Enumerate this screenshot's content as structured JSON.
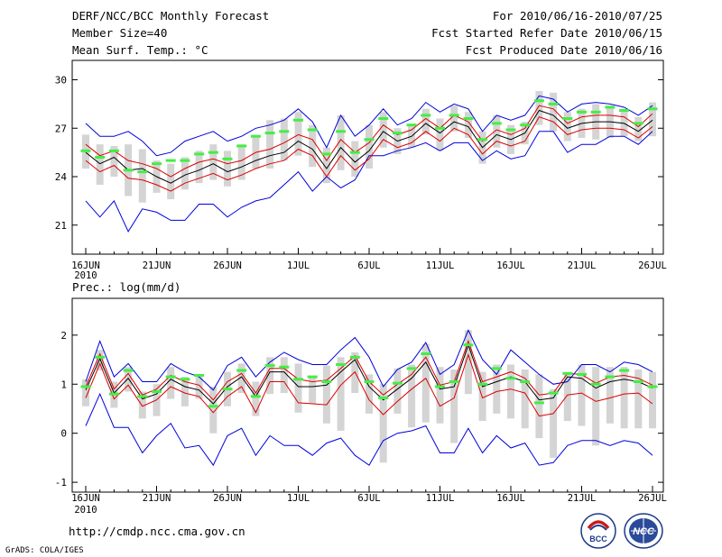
{
  "header": {
    "left": [
      "DERF/NCC/BCC Monthly Forecast",
      "Member Size=40",
      "Mean Surf. Temp.: °C"
    ],
    "right": [
      "For 2010/06/16-2010/07/25",
      "Fcst Started Refer Date 2010/06/15",
      "Fcst Produced Date 2010/06/16"
    ]
  },
  "footer": {
    "url": "http://cmdp.ncc.cma.gov.cn",
    "grads": "GrADS: COLA/IGES"
  },
  "logos": {
    "bcc_text": "BCC",
    "ncc_text": "NCC"
  },
  "colors": {
    "box": "#d4d4d4",
    "mean": "#000000",
    "std": "#dd0000",
    "range": "#0000dd",
    "obs": "#44ee44"
  },
  "chart_data": [
    {
      "type": "line",
      "title": "Mean Surf. Temp.: °C",
      "x_tick_labels": [
        "16JUN",
        "21JUN",
        "26JUN",
        "1JUL",
        "6JUL",
        "11JUL",
        "16JUL",
        "21JUL",
        "26JUL"
      ],
      "x_tick_days": [
        0,
        5,
        10,
        15,
        20,
        25,
        30,
        35,
        40
      ],
      "x_year_label": "2010",
      "ylim": [
        19.2,
        31.2
      ],
      "yticks": [
        21,
        24,
        27,
        30
      ],
      "series": [
        {
          "name": "max",
          "values": [
            27.3,
            26.5,
            26.5,
            26.8,
            26.2,
            25.3,
            25.5,
            26.2,
            26.5,
            26.8,
            26.2,
            26.5,
            27.0,
            27.2,
            27.5,
            28.2,
            27.4,
            25.8,
            27.8,
            26.5,
            27.2,
            28.2,
            27.2,
            27.6,
            28.6,
            28.0,
            28.5,
            28.2,
            26.8,
            27.8,
            27.5,
            27.8,
            29.0,
            28.8,
            28.0,
            28.5,
            28.6,
            28.5,
            28.3,
            27.8,
            28.4
          ]
        },
        {
          "name": "mean+std",
          "values": [
            26.0,
            25.3,
            25.6,
            25.0,
            24.8,
            24.5,
            24.0,
            24.5,
            24.9,
            25.1,
            24.8,
            25.0,
            25.5,
            25.7,
            26.1,
            26.6,
            26.3,
            25.0,
            26.3,
            25.5,
            26.1,
            27.2,
            26.6,
            26.9,
            27.6,
            27.0,
            27.8,
            27.4,
            26.2,
            26.9,
            26.6,
            27.0,
            28.4,
            28.2,
            27.3,
            27.7,
            27.8,
            27.8,
            27.7,
            27.1,
            27.9
          ]
        },
        {
          "name": "mean",
          "values": [
            25.5,
            24.8,
            25.2,
            24.4,
            24.5,
            24.0,
            23.6,
            24.1,
            24.4,
            24.8,
            24.3,
            24.6,
            25.0,
            25.3,
            25.5,
            26.2,
            25.7,
            24.5,
            25.8,
            24.9,
            25.6,
            26.8,
            26.2,
            26.5,
            27.3,
            26.7,
            27.4,
            27.1,
            25.8,
            26.6,
            26.3,
            26.7,
            28.1,
            27.8,
            27.0,
            27.3,
            27.4,
            27.4,
            27.3,
            26.8,
            27.5
          ]
        },
        {
          "name": "mean-std",
          "values": [
            25.0,
            24.3,
            24.7,
            23.9,
            23.8,
            23.5,
            23.1,
            23.6,
            23.9,
            24.2,
            23.8,
            24.1,
            24.5,
            24.8,
            25.0,
            25.7,
            25.3,
            24.0,
            25.3,
            24.4,
            25.1,
            26.3,
            25.8,
            26.1,
            26.8,
            26.2,
            27.0,
            26.6,
            25.4,
            26.2,
            25.9,
            26.2,
            27.7,
            27.4,
            26.6,
            26.9,
            27.0,
            27.0,
            26.9,
            26.4,
            27.1
          ]
        },
        {
          "name": "min",
          "values": [
            22.5,
            21.5,
            22.5,
            20.6,
            22.0,
            21.8,
            21.3,
            21.3,
            22.3,
            22.3,
            21.5,
            22.1,
            22.5,
            22.7,
            23.5,
            24.3,
            23.1,
            24.0,
            23.3,
            23.8,
            25.3,
            25.3,
            25.6,
            25.8,
            26.1,
            25.6,
            26.1,
            26.1,
            25.0,
            25.6,
            25.1,
            25.3,
            26.8,
            26.8,
            25.5,
            26.0,
            26.0,
            26.5,
            26.5,
            26.0,
            26.8
          ]
        },
        {
          "name": "observed",
          "values": [
            25.6,
            25.2,
            25.6,
            24.4,
            24.3,
            24.8,
            25.0,
            25.0,
            25.4,
            25.5,
            25.1,
            25.9,
            26.5,
            26.7,
            26.8,
            27.5,
            26.9,
            25.4,
            26.8,
            25.5,
            26.3,
            27.6,
            26.7,
            27.2,
            27.8,
            27.0,
            27.8,
            27.6,
            26.3,
            27.3,
            26.9,
            27.2,
            28.7,
            28.5,
            27.6,
            28.0,
            28.0,
            28.3,
            28.1,
            27.3,
            28.2
          ]
        },
        {
          "name": "box_top",
          "values": [
            26.6,
            26.0,
            25.9,
            26.0,
            25.7,
            25.0,
            24.8,
            25.2,
            25.6,
            26.0,
            25.6,
            26.0,
            26.5,
            27.5,
            27.6,
            28.0,
            27.2,
            25.8,
            27.8,
            26.2,
            27.2,
            28.0,
            27.0,
            27.2,
            28.2,
            27.6,
            28.4,
            28.0,
            26.8,
            27.8,
            27.2,
            27.4,
            29.3,
            29.2,
            28.0,
            28.2,
            28.5,
            28.4,
            28.2,
            27.7,
            28.6
          ]
        },
        {
          "name": "box_bottom",
          "values": [
            24.5,
            23.5,
            24.0,
            22.8,
            22.4,
            23.0,
            22.6,
            23.2,
            23.6,
            23.8,
            23.4,
            23.8,
            24.5,
            24.5,
            25.0,
            25.3,
            24.6,
            23.6,
            24.4,
            24.0,
            24.5,
            25.8,
            25.4,
            25.8,
            26.6,
            25.6,
            26.8,
            26.4,
            24.8,
            25.8,
            25.4,
            26.0,
            27.2,
            26.8,
            26.2,
            26.4,
            26.3,
            26.4,
            26.5,
            26.2,
            26.5
          ]
        }
      ]
    },
    {
      "type": "line",
      "title": "Prec.: log(mm/d)",
      "x_tick_labels": [
        "16JUN",
        "21JUN",
        "26JUN",
        "1JUL",
        "6JUL",
        "11JUL",
        "16JUL",
        "21JUL",
        "26JUL"
      ],
      "x_tick_days": [
        0,
        5,
        10,
        15,
        20,
        25,
        30,
        35,
        40
      ],
      "x_year_label": "2010",
      "ylim": [
        -1.2,
        2.75
      ],
      "yticks": [
        -1,
        0,
        1,
        2
      ],
      "series": [
        {
          "name": "max",
          "values": [
            1.05,
            1.88,
            1.15,
            1.42,
            1.05,
            1.05,
            1.42,
            1.25,
            1.15,
            0.88,
            1.38,
            1.55,
            1.15,
            1.45,
            1.65,
            1.5,
            1.4,
            1.4,
            1.7,
            1.95,
            1.55,
            0.95,
            1.3,
            1.45,
            1.85,
            1.2,
            1.4,
            2.1,
            1.5,
            1.2,
            1.7,
            1.45,
            1.2,
            1.0,
            1.05,
            1.4,
            1.4,
            1.25,
            1.45,
            1.4,
            1.25
          ]
        },
        {
          "name": "mean+std",
          "values": [
            0.95,
            1.62,
            0.9,
            1.22,
            0.78,
            0.9,
            1.18,
            1.05,
            0.98,
            0.68,
            1.05,
            1.22,
            0.82,
            1.32,
            1.32,
            1.1,
            1.05,
            1.08,
            1.32,
            1.58,
            1.05,
            0.78,
            1.0,
            1.2,
            1.55,
            0.98,
            1.05,
            1.88,
            1.05,
            1.15,
            1.25,
            1.12,
            0.78,
            0.82,
            1.22,
            1.2,
            1.02,
            1.15,
            1.18,
            1.12,
            0.98
          ]
        },
        {
          "name": "mean",
          "values": [
            0.88,
            1.52,
            0.82,
            1.12,
            0.7,
            0.8,
            1.1,
            0.95,
            0.88,
            0.6,
            0.95,
            1.15,
            0.75,
            1.25,
            1.25,
            0.95,
            0.95,
            0.98,
            1.25,
            1.5,
            0.95,
            0.68,
            0.9,
            1.12,
            1.45,
            0.9,
            0.95,
            1.8,
            0.95,
            1.05,
            1.15,
            1.05,
            0.68,
            0.72,
            1.15,
            1.12,
            0.92,
            1.05,
            1.1,
            1.05,
            0.92
          ]
        },
        {
          "name": "mean-std",
          "values": [
            0.72,
            1.42,
            0.7,
            0.98,
            0.55,
            0.68,
            0.95,
            0.82,
            0.75,
            0.42,
            0.75,
            0.95,
            0.42,
            1.05,
            1.05,
            0.62,
            0.6,
            0.58,
            0.98,
            1.25,
            0.68,
            0.38,
            0.65,
            0.9,
            1.12,
            0.55,
            0.72,
            1.6,
            0.72,
            0.85,
            0.9,
            0.82,
            0.35,
            0.4,
            0.78,
            0.82,
            0.65,
            0.72,
            0.8,
            0.82,
            0.6
          ]
        },
        {
          "name": "min",
          "values": [
            0.15,
            0.8,
            0.12,
            0.12,
            -0.4,
            -0.05,
            0.2,
            -0.3,
            -0.25,
            -0.65,
            -0.05,
            0.1,
            -0.45,
            -0.05,
            -0.25,
            -0.25,
            -0.45,
            -0.2,
            -0.1,
            -0.45,
            -0.65,
            -0.15,
            0.0,
            0.05,
            0.15,
            -0.4,
            -0.4,
            0.1,
            -0.4,
            -0.05,
            -0.3,
            -0.2,
            -0.65,
            -0.6,
            -0.25,
            -0.15,
            -0.15,
            -0.25,
            -0.15,
            -0.2,
            -0.45
          ]
        },
        {
          "name": "observed",
          "values": [
            0.95,
            1.55,
            0.8,
            1.28,
            0.75,
            0.85,
            1.15,
            1.1,
            1.18,
            0.55,
            0.9,
            1.28,
            0.75,
            1.38,
            1.35,
            1.1,
            1.15,
            1.05,
            1.4,
            1.55,
            1.05,
            0.72,
            1.02,
            1.32,
            1.62,
            0.95,
            1.05,
            1.8,
            1.0,
            1.32,
            1.12,
            1.05,
            0.62,
            0.82,
            1.22,
            1.2,
            1.0,
            1.15,
            1.28,
            1.05,
            0.95
          ]
        },
        {
          "name": "box_top",
          "values": [
            1.1,
            1.7,
            1.05,
            1.35,
            0.85,
            1.0,
            1.35,
            1.15,
            1.15,
            0.95,
            1.25,
            1.42,
            1.05,
            1.55,
            1.55,
            1.42,
            1.15,
            1.38,
            1.55,
            1.65,
            1.2,
            1.0,
            1.32,
            1.4,
            1.82,
            1.35,
            1.3,
            2.1,
            1.25,
            1.4,
            1.4,
            1.3,
            1.2,
            0.9,
            1.2,
            1.4,
            1.35,
            1.35,
            1.35,
            1.3,
            1.25
          ]
        },
        {
          "name": "box_bottom",
          "values": [
            0.55,
            1.28,
            0.52,
            0.85,
            0.3,
            0.35,
            0.7,
            0.55,
            0.7,
            0.0,
            0.55,
            0.82,
            0.35,
            0.8,
            0.82,
            0.42,
            0.6,
            0.2,
            0.05,
            0.82,
            0.4,
            -0.6,
            0.4,
            0.12,
            0.22,
            0.2,
            -0.2,
            0.8,
            0.25,
            0.4,
            0.3,
            0.1,
            -0.1,
            -0.5,
            0.25,
            0.15,
            -0.25,
            0.2,
            0.1,
            0.1,
            0.1
          ]
        }
      ]
    }
  ]
}
